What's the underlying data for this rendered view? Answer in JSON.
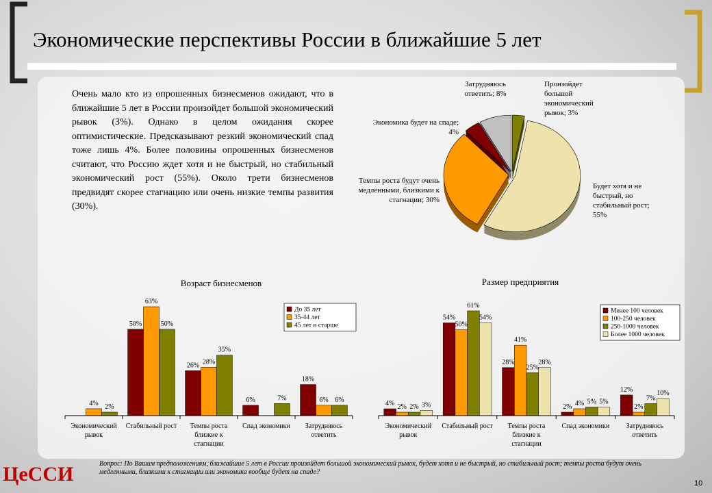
{
  "title": "Экономические перспективы России в ближайшие 5 лет",
  "text": "Очень мало кто из опрошенных бизнесменов ожидают, что в ближайшие 5 лет в России произойдет большой экономический рывок (3%). Однако в целом ожидания скорее оптимистические. Предсказывают резкий экономический спад тоже лишь 4%. Более половины опрошенных бизнесменов считают, что Россию ждет хотя и не быстрый, но стабильный экономический рост (55%). Около трети бизнесменов предвидят скорее стагнацию или очень низкие темпы развития (30%).",
  "question": "Вопрос: По Вашим предположениям, ближайшие 5 лет в России произойдет большой экономический рывок, будет хотя и не быстрый, но стабильный рост; темпы роста будут очень медленными, близкими к стагнации или экономика вообще будет на спаде?",
  "logo": "ЦеССИ",
  "page": "10",
  "chart_data": [
    {
      "type": "pie",
      "categories": [
        "Произойдет большой экономический рывок; 3%",
        "Будет хотя и не быстрый, но стабильный рост; 55%",
        "Темпы роста будут очень медленными, близкими к стагнации; 30%",
        "Экономика будет на спаде; 4%",
        "Затрудняюсь ответить; 8%"
      ],
      "values": [
        3,
        55,
        30,
        4,
        8
      ],
      "colors": [
        "#808000",
        "#efe3ad",
        "#ff9900",
        "#800000",
        "#c0c0c0"
      ]
    },
    {
      "type": "bar",
      "title": "Возраст бизнесменов",
      "categories": [
        "Экономический рывок",
        "Стабильный рост",
        "Темпы роста близкие к стагнации",
        "Спад экономики",
        "Затрудняюсь ответить"
      ],
      "series": [
        {
          "name": "До 35 лет",
          "color": "#800000",
          "values": [
            null,
            50,
            26,
            6,
            18
          ],
          "value_labels": [
            null,
            "50%",
            "26%",
            "6%",
            "18%"
          ]
        },
        {
          "name": "35-44 лет",
          "color": "#ff9900",
          "values": [
            4,
            63,
            28,
            null,
            6
          ],
          "value_labels": [
            "4%",
            "63%",
            "28%",
            null,
            "6%"
          ]
        },
        {
          "name": "45 лет и старше",
          "color": "#808000",
          "values": [
            2,
            50,
            35,
            7,
            6
          ],
          "value_labels": [
            "2%",
            "50%",
            "35%",
            "7%",
            "6%"
          ]
        }
      ]
    },
    {
      "type": "bar",
      "title": "Размер предприятия",
      "categories": [
        "Экономический рывок",
        "Стабильный рост",
        "Темпы роста близкие к стагнации",
        "Спад экономики",
        "Затрудняюсь ответить"
      ],
      "series": [
        {
          "name": "Менее 100 человек",
          "color": "#800000",
          "values": [
            4,
            54,
            28,
            2,
            12
          ],
          "value_labels": [
            "4%",
            "54%",
            "28%",
            "2%",
            "12%"
          ]
        },
        {
          "name": "100-250 человек",
          "color": "#ff9900",
          "values": [
            2,
            50,
            41,
            4,
            2
          ],
          "value_labels": [
            "2%",
            "50%",
            "41%",
            "4%",
            "2%"
          ]
        },
        {
          "name": "250-1000 человек",
          "color": "#808000",
          "values": [
            2,
            61,
            25,
            5,
            7
          ],
          "value_labels": [
            "2%",
            "61%",
            "25%",
            "5%",
            "7%"
          ]
        },
        {
          "name": "Более 1000 человек",
          "color": "#efe3ad",
          "values": [
            3,
            54,
            28,
            5,
            10
          ],
          "value_labels": [
            "3%",
            "54%",
            "28%",
            "5%",
            "10%"
          ]
        }
      ]
    }
  ]
}
